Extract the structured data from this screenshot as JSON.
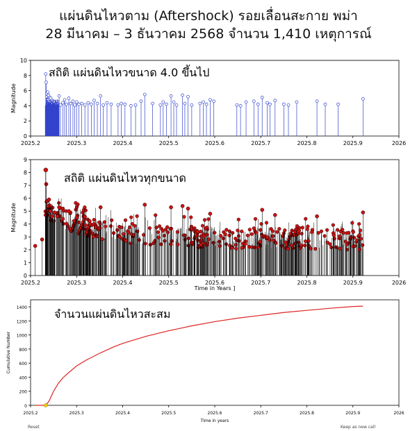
{
  "header": {
    "title_line1": "แผ่นดินไหวตาม (Aftershock) รอยเลื่อนสะกาย พม่า",
    "title_line2": "28 มีนาคม – 3 ธันวาคม 2568 จำนวน 1,410 เหตุการณ์"
  },
  "footer": {
    "reset_label": "Reset",
    "keep_label": "Keep as new call"
  },
  "colors": {
    "stem_top": "#3344cc",
    "stem_mid": "#000000",
    "marker_mid": "#cc1111",
    "curve": "#dd2222"
  },
  "chart_data": [
    {
      "type": "scatter",
      "panel": "top",
      "title": "สถิติ แผ่นดินไหวขนาด 4.0 ขึ้นไป",
      "xlabel": "",
      "ylabel": "Magnitude",
      "xlim": [
        2025.2,
        2026
      ],
      "ylim": [
        0,
        10
      ],
      "x_ticks": [
        "2025.2",
        "2025.3",
        "2025.4",
        "2025.5",
        "2025.6",
        "2025.7",
        "2025.8",
        "2025.9",
        "2026"
      ],
      "y_ticks": [
        "0",
        "2",
        "4",
        "6",
        "8",
        "10"
      ],
      "points": [
        [
          2025.233,
          8.2
        ],
        [
          2025.234,
          7.1
        ],
        [
          2025.235,
          5.6
        ],
        [
          2025.236,
          5.2
        ],
        [
          2025.237,
          5.8
        ],
        [
          2025.238,
          4.8
        ],
        [
          2025.239,
          5.4
        ],
        [
          2025.24,
          4.6
        ],
        [
          2025.241,
          5.1
        ],
        [
          2025.242,
          4.9
        ],
        [
          2025.243,
          4.5
        ],
        [
          2025.244,
          5.0
        ],
        [
          2025.245,
          4.4
        ],
        [
          2025.246,
          4.7
        ],
        [
          2025.248,
          4.3
        ],
        [
          2025.25,
          4.6
        ],
        [
          2025.252,
          4.5
        ],
        [
          2025.255,
          4.2
        ],
        [
          2025.258,
          4.6
        ],
        [
          2025.262,
          5.3
        ],
        [
          2025.265,
          4.1
        ],
        [
          2025.27,
          4.4
        ],
        [
          2025.274,
          4.8
        ],
        [
          2025.278,
          4.2
        ],
        [
          2025.283,
          5.0
        ],
        [
          2025.287,
          4.3
        ],
        [
          2025.292,
          4.6
        ],
        [
          2025.296,
          4.1
        ],
        [
          2025.3,
          4.5
        ],
        [
          2025.305,
          4.2
        ],
        [
          2025.311,
          4.3
        ],
        [
          2025.318,
          4.1
        ],
        [
          2025.325,
          4.4
        ],
        [
          2025.332,
          4.2
        ],
        [
          2025.338,
          4.7
        ],
        [
          2025.345,
          4.3
        ],
        [
          2025.352,
          5.3
        ],
        [
          2025.358,
          4.1
        ],
        [
          2025.366,
          4.4
        ],
        [
          2025.375,
          4.2
        ],
        [
          2025.39,
          4.1
        ],
        [
          2025.397,
          4.3
        ],
        [
          2025.405,
          4.2
        ],
        [
          2025.418,
          4.0
        ],
        [
          2025.428,
          4.1
        ],
        [
          2025.44,
          4.6
        ],
        [
          2025.448,
          5.5
        ],
        [
          2025.465,
          4.3
        ],
        [
          2025.482,
          4.1
        ],
        [
          2025.488,
          4.5
        ],
        [
          2025.495,
          4.2
        ],
        [
          2025.505,
          5.3
        ],
        [
          2025.511,
          4.5
        ],
        [
          2025.517,
          4.1
        ],
        [
          2025.53,
          5.4
        ],
        [
          2025.535,
          4.3
        ],
        [
          2025.542,
          5.2
        ],
        [
          2025.55,
          4.1
        ],
        [
          2025.568,
          4.3
        ],
        [
          2025.575,
          4.5
        ],
        [
          2025.582,
          4.2
        ],
        [
          2025.59,
          4.8
        ],
        [
          2025.598,
          4.6
        ],
        [
          2025.648,
          4.1
        ],
        [
          2025.656,
          4.0
        ],
        [
          2025.668,
          4.5
        ],
        [
          2025.685,
          4.6
        ],
        [
          2025.694,
          4.2
        ],
        [
          2025.703,
          5.1
        ],
        [
          2025.714,
          4.4
        ],
        [
          2025.72,
          4.2
        ],
        [
          2025.731,
          4.7
        ],
        [
          2025.75,
          4.2
        ],
        [
          2025.76,
          4.1
        ],
        [
          2025.778,
          4.5
        ],
        [
          2025.822,
          4.6
        ],
        [
          2025.84,
          4.2
        ],
        [
          2025.868,
          4.2
        ],
        [
          2025.922,
          4.9
        ]
      ]
    },
    {
      "type": "scatter",
      "panel": "middle",
      "title": "สถิติ แผ่นดินไหวทุกขนาด",
      "xlabel": "Time in Years ]",
      "ylabel": "Magnitude",
      "xlim": [
        2025.2,
        2026
      ],
      "ylim": [
        0,
        9
      ],
      "x_ticks": [
        "2025.2",
        "2025.3",
        "2025.4",
        "2025.5",
        "2025.6",
        "2025.7",
        "2025.8",
        "2025.9",
        "2026"
      ],
      "y_ticks": [
        "0",
        "1",
        "2",
        "3",
        "4",
        "5",
        "6",
        "7",
        "8",
        "9"
      ],
      "mainshock": [
        2025.233,
        8.2
      ],
      "envelope_note": "dense events between about 2 and 5 magnitude from 2025.23 to 2025.92",
      "points": [
        [
          2025.21,
          2.3
        ],
        [
          2025.225,
          2.8
        ],
        [
          2025.234,
          7.1
        ],
        [
          2025.236,
          5.8
        ],
        [
          2025.238,
          5.4
        ],
        [
          2025.24,
          5.9
        ],
        [
          2025.243,
          5.0
        ],
        [
          2025.247,
          4.6
        ],
        [
          2025.252,
          4.9
        ],
        [
          2025.258,
          4.6
        ],
        [
          2025.262,
          5.3
        ],
        [
          2025.27,
          4.4
        ],
        [
          2025.283,
          5.0
        ],
        [
          2025.3,
          4.5
        ],
        [
          2025.352,
          5.3
        ],
        [
          2025.448,
          5.5
        ],
        [
          2025.505,
          5.3
        ],
        [
          2025.53,
          5.4
        ],
        [
          2025.542,
          5.2
        ],
        [
          2025.59,
          4.8
        ],
        [
          2025.703,
          5.1
        ],
        [
          2025.731,
          4.7
        ],
        [
          2025.822,
          4.6
        ],
        [
          2025.922,
          4.9
        ]
      ]
    },
    {
      "type": "line",
      "panel": "bottom",
      "title": "จำนวนแผ่นดินไหวสะสม",
      "xlabel": "Time in years",
      "ylabel": "Cumulative Number",
      "xlim": [
        2025.2,
        2026
      ],
      "ylim": [
        0,
        1500
      ],
      "x_ticks": [
        "2025.2",
        "2025.3",
        "2025.4",
        "2025.5",
        "2025.6",
        "2025.7",
        "2025.8",
        "2025.9",
        "2026"
      ],
      "y_ticks": [
        "0",
        "200",
        "400",
        "600",
        "800",
        "1000",
        "1200",
        "1400"
      ],
      "x": [
        2025.21,
        2025.233,
        2025.24,
        2025.25,
        2025.26,
        2025.27,
        2025.28,
        2025.3,
        2025.32,
        2025.35,
        2025.38,
        2025.4,
        2025.45,
        2025.5,
        2025.55,
        2025.6,
        2025.65,
        2025.7,
        2025.75,
        2025.8,
        2025.85,
        2025.9,
        2025.922
      ],
      "y": [
        0,
        0,
        60,
        200,
        310,
        390,
        450,
        560,
        640,
        740,
        830,
        880,
        980,
        1060,
        1130,
        1190,
        1240,
        1280,
        1320,
        1350,
        1380,
        1405,
        1410
      ]
    }
  ]
}
